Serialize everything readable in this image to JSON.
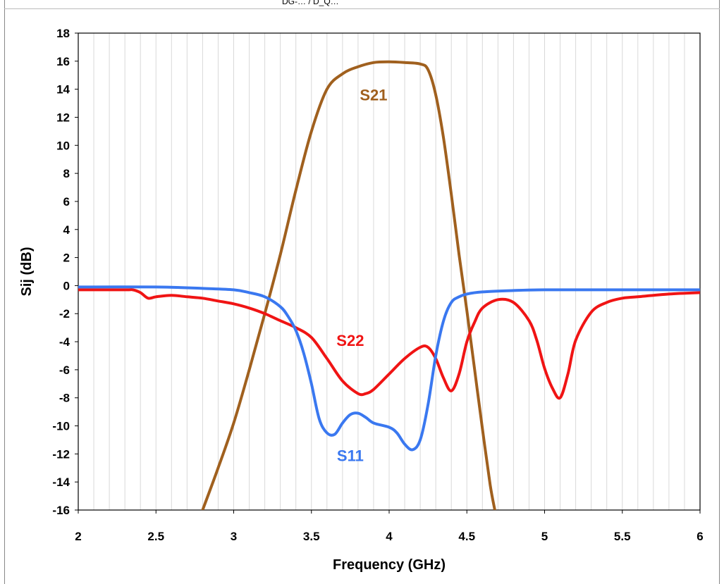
{
  "header_text": "DG-… / D_Q…",
  "chart_data": {
    "type": "line",
    "title": "",
    "xlabel": "Frequency (GHz)",
    "ylabel": "Sij (dB)",
    "xlim": [
      2,
      6
    ],
    "ylim": [
      -16,
      18
    ],
    "xticks": [
      2,
      2.5,
      3,
      3.5,
      4,
      4.5,
      5,
      5.5,
      6
    ],
    "xtick_labels": [
      "2",
      "2.5",
      "3",
      "3.5",
      "4",
      "4.5",
      "5",
      "5.5",
      "6"
    ],
    "yticks": [
      -16,
      -14,
      -12,
      -10,
      -8,
      -6,
      -4,
      -2,
      0,
      2,
      4,
      6,
      8,
      10,
      12,
      14,
      16,
      18
    ],
    "ytick_labels": [
      "-16",
      "-14",
      "-12",
      "-10",
      "-8",
      "-6",
      "-4",
      "-2",
      "0",
      "2",
      "4",
      "6",
      "8",
      "10",
      "12",
      "14",
      "16",
      "18"
    ],
    "grid": "vertical-minor",
    "legend": "inline-labels",
    "series": [
      {
        "name": "S21",
        "color": "#a0601e",
        "label_pos": [
          3.9,
          13.2
        ],
        "x": [
          2.8,
          2.9,
          3.0,
          3.1,
          3.2,
          3.3,
          3.4,
          3.5,
          3.6,
          3.7,
          3.8,
          3.9,
          4.0,
          4.1,
          4.2,
          4.25,
          4.3,
          4.35,
          4.4,
          4.45,
          4.5,
          4.55,
          4.6,
          4.65,
          4.68
        ],
        "y": [
          -16,
          -13,
          -9.8,
          -6,
          -2,
          2.2,
          6.8,
          11,
          14,
          15.1,
          15.6,
          15.9,
          15.95,
          15.9,
          15.8,
          15.4,
          13.6,
          10.5,
          6.5,
          2.2,
          -1.8,
          -6,
          -10.2,
          -14.2,
          -16
        ]
      },
      {
        "name": "S22",
        "color": "#f01414",
        "label_pos": [
          3.75,
          -4.3
        ],
        "x": [
          2.0,
          2.3,
          2.35,
          2.4,
          2.45,
          2.5,
          2.6,
          2.7,
          2.8,
          2.9,
          3.0,
          3.1,
          3.2,
          3.3,
          3.4,
          3.5,
          3.6,
          3.7,
          3.8,
          3.85,
          3.9,
          4.0,
          4.1,
          4.2,
          4.25,
          4.3,
          4.35,
          4.4,
          4.45,
          4.5,
          4.55,
          4.6,
          4.7,
          4.8,
          4.9,
          4.95,
          5.0,
          5.05,
          5.1,
          5.15,
          5.2,
          5.3,
          5.4,
          5.5,
          5.6,
          5.8,
          6.0
        ],
        "y": [
          -0.3,
          -0.3,
          -0.3,
          -0.5,
          -0.9,
          -0.8,
          -0.7,
          -0.8,
          -0.9,
          -1.1,
          -1.3,
          -1.6,
          -2.0,
          -2.5,
          -3.0,
          -3.7,
          -5.2,
          -6.8,
          -7.7,
          -7.7,
          -7.4,
          -6.3,
          -5.2,
          -4.4,
          -4.4,
          -5.2,
          -6.6,
          -7.5,
          -6.3,
          -4.0,
          -2.6,
          -1.6,
          -1.0,
          -1.2,
          -2.5,
          -3.9,
          -5.9,
          -7.3,
          -8.0,
          -6.3,
          -3.9,
          -1.9,
          -1.2,
          -0.9,
          -0.8,
          -0.6,
          -0.5
        ]
      },
      {
        "name": "S11",
        "color": "#3a78f0",
        "label_pos": [
          3.75,
          -12.5
        ],
        "x": [
          2.0,
          2.5,
          2.8,
          3.0,
          3.1,
          3.2,
          3.3,
          3.35,
          3.4,
          3.45,
          3.5,
          3.55,
          3.6,
          3.65,
          3.7,
          3.75,
          3.8,
          3.85,
          3.9,
          4.0,
          4.05,
          4.1,
          4.15,
          4.2,
          4.25,
          4.3,
          4.35,
          4.4,
          4.45,
          4.5,
          4.6,
          4.8,
          5.0,
          5.5,
          6.0
        ],
        "y": [
          -0.1,
          -0.1,
          -0.2,
          -0.3,
          -0.5,
          -0.8,
          -1.5,
          -2.2,
          -3.2,
          -4.8,
          -7.0,
          -9.5,
          -10.5,
          -10.6,
          -9.8,
          -9.2,
          -9.1,
          -9.4,
          -9.8,
          -10.1,
          -10.5,
          -11.3,
          -11.7,
          -11.0,
          -8.5,
          -5.0,
          -2.5,
          -1.2,
          -0.8,
          -0.6,
          -0.45,
          -0.35,
          -0.3,
          -0.3,
          -0.3
        ]
      }
    ]
  }
}
